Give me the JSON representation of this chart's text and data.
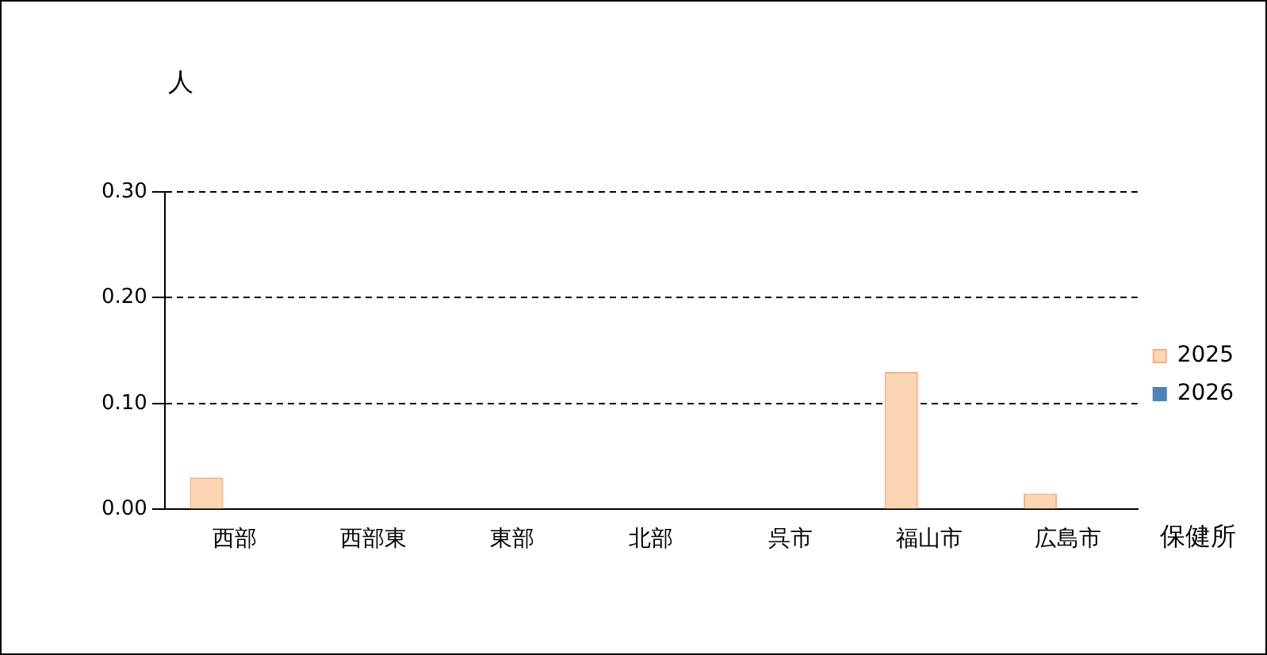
{
  "chart_data": {
    "type": "bar",
    "ylabel": "人",
    "xlabel": "保健所",
    "categories": [
      "西部",
      "西部東",
      "東部",
      "北部",
      "呉市",
      "福山市",
      "広島市"
    ],
    "series": [
      {
        "name": "2025",
        "color": "#fcd5b4",
        "values": [
          0.03,
          0,
          0,
          0,
          0,
          0.13,
          0.015
        ]
      },
      {
        "name": "2026",
        "color": "#4f81bd",
        "values": [
          0,
          0,
          0,
          0,
          0,
          0,
          0
        ]
      }
    ],
    "ylim": [
      0,
      0.3
    ],
    "yticks": [
      {
        "value": 0,
        "label": "0.00"
      },
      {
        "value": 0.1,
        "label": "0.10"
      },
      {
        "value": 0.2,
        "label": "0.20"
      },
      {
        "value": 0.3,
        "label": "0.30"
      }
    ],
    "grid": "y",
    "legend": "right"
  }
}
